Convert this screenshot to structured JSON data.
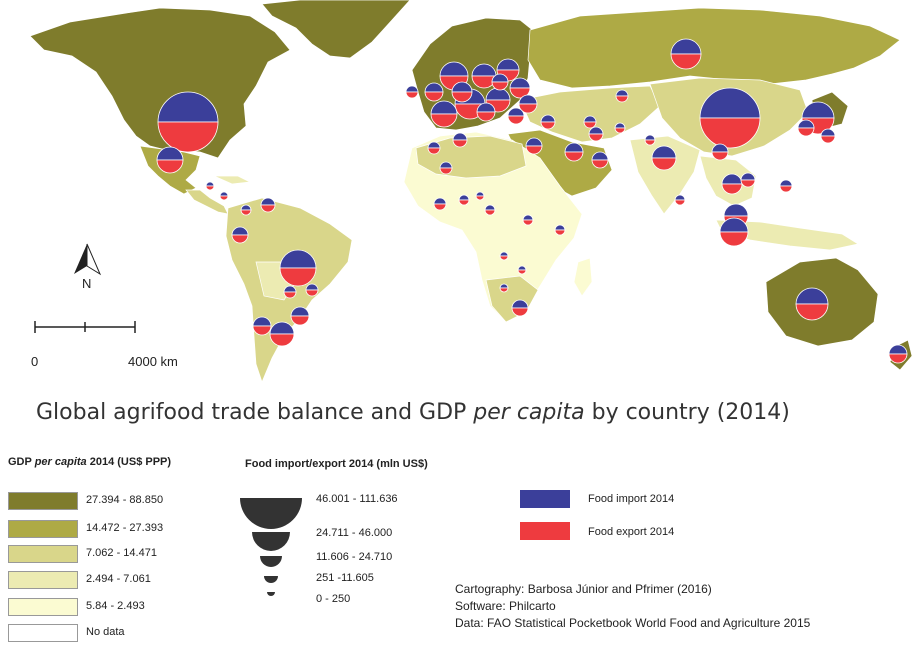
{
  "title": {
    "before": "Global agrifood trade balance and GDP ",
    "italic": "per capita",
    "after": " by country (2014)"
  },
  "scale": {
    "zero": "0",
    "end": "4000 km"
  },
  "north": {
    "label": "N"
  },
  "legend_gdp": {
    "title_before": "GDP ",
    "title_italic": "per capita",
    "title_after": " 2014 (US$ PPP)",
    "classes": [
      {
        "label": "27.394 - 88.850",
        "color": "#7f7c2c"
      },
      {
        "label": "14.472 - 27.393",
        "color": "#aeaa45"
      },
      {
        "label": "7.062 - 14.471",
        "color": "#d9d68a"
      },
      {
        "label": "2.494 - 7.061",
        "color": "#ecebb2"
      },
      {
        "label": "5.84 - 2.493",
        "color": "#fbfbd2"
      },
      {
        "label": "No data",
        "color": "#ffffff"
      }
    ]
  },
  "legend_food": {
    "title": "Food import/export 2014 (mln US$)",
    "classes": [
      {
        "label": "46.001 - 111.636"
      },
      {
        "label": "24.711 - 46.000"
      },
      {
        "label": "11.606 - 24.710"
      },
      {
        "label": "251 -11.605"
      },
      {
        "label": "0 - 250"
      }
    ]
  },
  "legend_flows": {
    "import": {
      "label": "Food import 2014",
      "color": "#3b3f9a"
    },
    "export": {
      "label": "Food export 2014",
      "color": "#ee3b3f"
    }
  },
  "credits": {
    "cartography": "Cartography: Barbosa Júnior and Pfrimer (2016)",
    "software": "Software: Philcarto",
    "data": "Data: FAO Statistical Pocketbook World Food and Agriculture 2015"
  },
  "colors": {
    "ocean": "#ffffff",
    "border": "#ffffff"
  }
}
